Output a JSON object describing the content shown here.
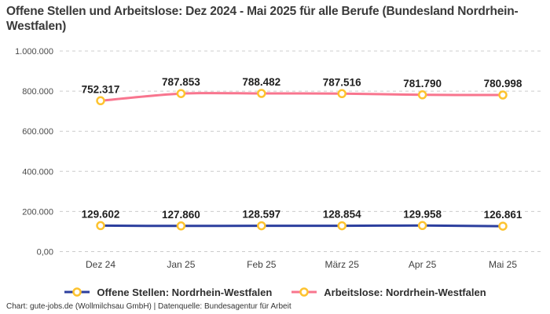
{
  "title": "Offene Stellen und Arbeitslose: Dez 2024 - Mai 2025 für alle Berufe (Bundesland Nordrhein-Westfalen)",
  "footer": "Chart: gute-jobs.de (Wollmilchsau GmbH) | Datenquelle: Bundesagentur für Arbeit",
  "colors": {
    "open_positions_line": "#2c3f9e",
    "unemployed_line": "#f8758e",
    "marker_ring": "#fdc32f",
    "marker_fill": "#ffffff",
    "gridline": "#cccccc"
  },
  "chart_data": {
    "type": "line",
    "title": "Offene Stellen und Arbeitslose: Dez 2024 - Mai 2025 für alle Berufe (Bundesland Nordrhein-Westfalen)",
    "categories": [
      "Dez 24",
      "Jan 25",
      "Feb 25",
      "März 25",
      "Apr 25",
      "Mai 25"
    ],
    "series": [
      {
        "name": "Offene Stellen: Nordrhein-Westfalen",
        "color": "#2c3f9e",
        "values": [
          129602,
          127860,
          128597,
          128854,
          129958,
          126861
        ],
        "labels": [
          "129.602",
          "127.860",
          "128.597",
          "128.854",
          "129.958",
          "126.861"
        ]
      },
      {
        "name": "Arbeitslose: Nordrhein-Westfalen",
        "color": "#f8758e",
        "values": [
          752317,
          787853,
          788482,
          787516,
          781790,
          780998
        ],
        "labels": [
          "752.317",
          "787.853",
          "788.482",
          "787.516",
          "781.790",
          "780.998"
        ]
      }
    ],
    "y_ticks": [
      {
        "value": 0,
        "label": "0,00"
      },
      {
        "value": 200000,
        "label": "200.000"
      },
      {
        "value": 400000,
        "label": "400.000"
      },
      {
        "value": 600000,
        "label": "600.000"
      },
      {
        "value": 800000,
        "label": "800.000"
      },
      {
        "value": 1000000,
        "label": "1.000.000"
      }
    ],
    "ylim": [
      0,
      1000000
    ],
    "xlabel": "",
    "ylabel": "",
    "grid": "horizontal-dashed",
    "legend_position": "bottom",
    "marker_style": "ring"
  }
}
